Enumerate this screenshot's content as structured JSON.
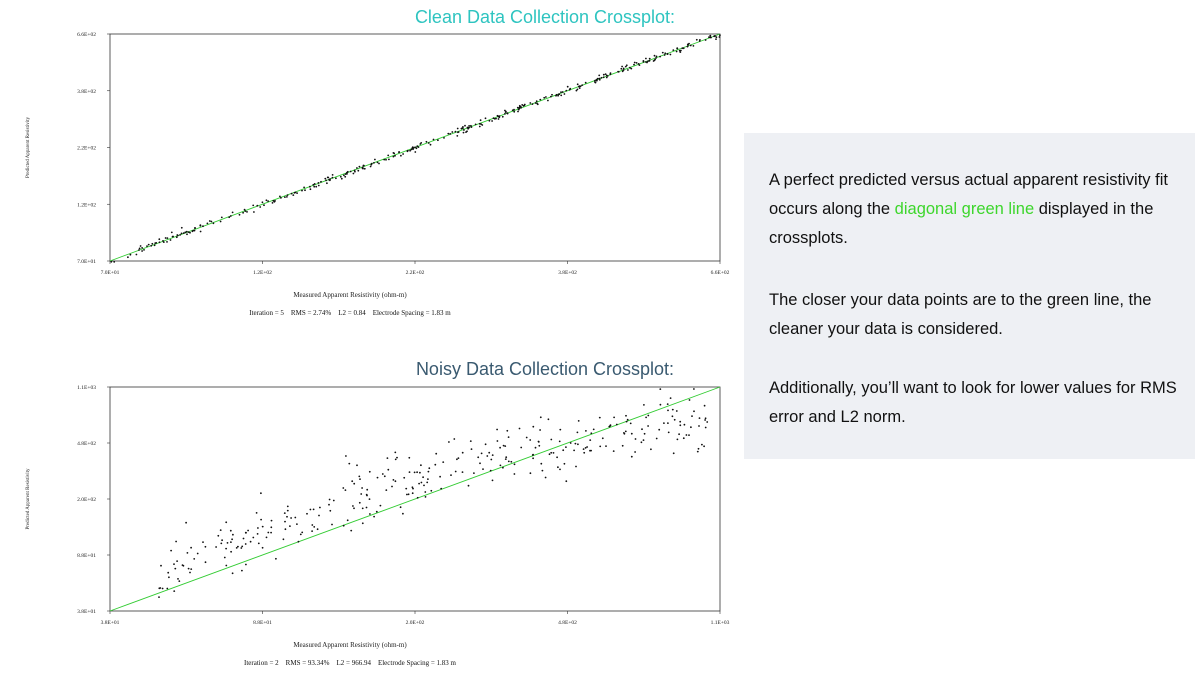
{
  "titles": {
    "top": "Clean Data Collection Crossplot:",
    "bottom": "Noisy Data Collection Crossplot:"
  },
  "info": {
    "p1_before": "A perfect predicted versus actual apparent resistivity fit occurs along the ",
    "p1_highlight": "diagonal green line",
    "p1_after": " displayed in the crossplots.",
    "p2": "The closer your data points are to the green line, the cleaner your data is considered.",
    "p3": "Additionally, you’ll want to look for lower values for RMS error and L2 norm.",
    "highlight_color": "#3dd62c",
    "background": "#eef0f4"
  },
  "chart_data": [
    {
      "type": "scatter",
      "title": "Clean Data Collection Crossplot:",
      "xlabel": "Measured Apparent Resistivity (ohm-m)",
      "ylabel": "Predicted Apparent Resistivity",
      "x_ticks": [
        "7.0E+01",
        "1.2E+02",
        "2.2E+02",
        "3.8E+02",
        "6.6E+02"
      ],
      "y_ticks": [
        "7.0E+01",
        "1.2E+02",
        "2.2E+02",
        "3.8E+02",
        "6.6E+02"
      ],
      "scale": "log",
      "xlim": [
        70,
        660
      ],
      "ylim": [
        70,
        660
      ],
      "footer": "Iteration = 5    RMS = 2.74%    L2 = 0.84    Electrode Spacing = 1.83 m",
      "fit_line": {
        "color": "#33cc33",
        "from": [
          70,
          70
        ],
        "to": [
          660,
          660
        ]
      },
      "point_model": {
        "count": 360,
        "spread": 0.06,
        "seed": 11
      },
      "grid": false
    },
    {
      "type": "scatter",
      "title": "Noisy Data Collection Crossplot:",
      "xlabel": "Measured Apparent Resistivity (ohm-m)",
      "ylabel": "Predicted Apparent Resistivity",
      "x_ticks": [
        "3.8E+01",
        "8.8E+01",
        "2.0E+02",
        "4.8E+02",
        "1.1E+03"
      ],
      "y_ticks": [
        "3.8E+01",
        "8.8E+01",
        "2.0E+02",
        "4.8E+02",
        "1.1E+03"
      ],
      "scale": "log",
      "xlim": [
        38,
        1100
      ],
      "ylim": [
        38,
        1100
      ],
      "footer": "Iteration = 2    RMS = 93.34%    L2 = 966.94    Electrode Spacing = 1.83 m",
      "fit_line": {
        "color": "#33cc33",
        "from": [
          38,
          38
        ],
        "to": [
          1100,
          1100
        ]
      },
      "point_model": {
        "count": 330,
        "spread": 0.35,
        "seed": 7
      },
      "grid": false
    }
  ]
}
